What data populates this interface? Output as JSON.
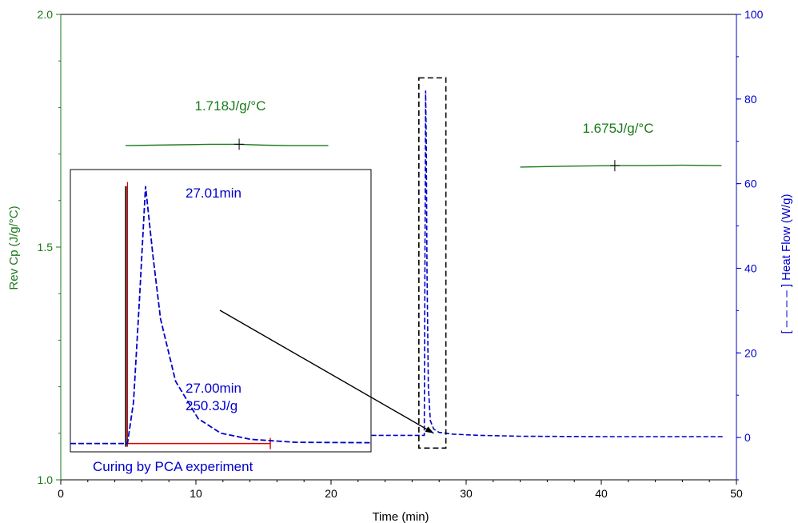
{
  "chart_data": {
    "type": "line",
    "xlabel": "Time (min)",
    "ylabel_left": "Rev Cp (J/g/°C)",
    "ylabel_right": "[ – – – – ] Heat Flow (W/g)",
    "xlim": [
      0,
      50
    ],
    "ylim_left": [
      1.0,
      2.0
    ],
    "ylim_right": [
      -10,
      100
    ],
    "x_ticks": [
      "0",
      "10",
      "20",
      "30",
      "40",
      "50"
    ],
    "y_left_ticks": [
      "1.0",
      "1.5",
      "2.0"
    ],
    "y_right_ticks": [
      "0",
      "20",
      "40",
      "60",
      "80",
      "100"
    ],
    "colors": {
      "left_axis": "#1a7a1a",
      "right_axis": "#0000cc",
      "inset_baseline": "#e00000",
      "frame": "#000000"
    },
    "grid": false,
    "series": [
      {
        "name": "Rev Cp",
        "axis": "left",
        "segments": [
          {
            "x": [
              4.8,
              7,
              9,
              11,
              13.2,
              15,
              17,
              19.8
            ],
            "y": [
              1.718,
              1.719,
              1.72,
              1.721,
              1.721,
              1.719,
              1.718,
              1.718
            ]
          },
          {
            "x": [
              34,
              36,
              38,
              41,
              43,
              46,
              48.9
            ],
            "y": [
              1.672,
              1.673,
              1.674,
              1.675,
              1.675,
              1.676,
              1.675
            ]
          }
        ]
      },
      {
        "name": "Heat Flow",
        "axis": "right",
        "x": [
          23,
          26,
          26.9,
          27.0,
          27.05,
          27.1,
          27.2,
          27.35,
          27.6,
          28,
          29,
          31,
          34,
          40,
          49
        ],
        "y": [
          0.5,
          0.5,
          0.5,
          82,
          70,
          40,
          12,
          4,
          2,
          1.2,
          0.8,
          0.5,
          0.3,
          0.2,
          0.2
        ]
      }
    ],
    "markers": [
      {
        "x": 13.2,
        "y": 1.721,
        "axis": "left"
      },
      {
        "x": 41,
        "y": 1.675,
        "axis": "left"
      }
    ],
    "zoom_box": {
      "x": [
        26.5,
        28.5
      ],
      "y": [
        -2.5,
        85
      ]
    },
    "annotations": {
      "cp1": "1.718J/g/°C",
      "cp2": "1.675J/g/°C",
      "peak_time": "27.01min",
      "onset_time": "27.00min",
      "enthalpy": "250.3J/g",
      "inset_caption": "Curing by PCA experiment"
    },
    "inset": {
      "x_range": [
        26.5,
        28.5
      ],
      "y_range": [
        -2,
        66
      ],
      "heat_flow": {
        "x": [
          26.5,
          26.85,
          26.88,
          26.92,
          26.96,
          27.0,
          27.05,
          27.1,
          27.2,
          27.35,
          27.5,
          27.7,
          28.0,
          28.5
        ],
        "y": [
          0,
          0,
          0,
          10,
          35,
          62,
          45,
          30,
          15,
          6,
          2.5,
          1,
          0.3,
          0.2
        ]
      },
      "integration_start": 26.88,
      "integration_end": 27.83
    }
  }
}
